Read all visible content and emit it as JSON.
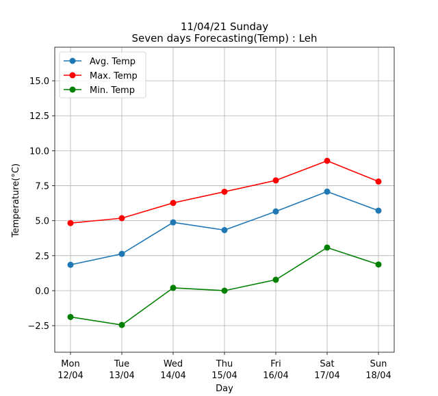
{
  "chart_data": {
    "type": "line",
    "title_line1": "11/04/21 Sunday",
    "title_line2": "Seven days Forecasting(Temp) : Leh",
    "xlabel": "Day",
    "ylabel": "Temperature(°C)",
    "categories": [
      {
        "day": "Mon",
        "date": "12/04"
      },
      {
        "day": "Tue",
        "date": "13/04"
      },
      {
        "day": "Wed",
        "date": "14/04"
      },
      {
        "day": "Thu",
        "date": "15/04"
      },
      {
        "day": "Fri",
        "date": "16/04"
      },
      {
        "day": "Sat",
        "date": "17/04"
      },
      {
        "day": "Sun",
        "date": "18/04"
      }
    ],
    "ylim": [
      -4.4,
      17.4
    ],
    "yticks": [
      -2.5,
      0.0,
      2.5,
      5.0,
      7.5,
      10.0,
      12.5,
      15.0
    ],
    "ytick_labels": [
      "−2.5",
      "0.0",
      "2.5",
      "5.0",
      "7.5",
      "10.0",
      "12.5",
      "15.0"
    ],
    "grid": true,
    "legend_position": "top-left",
    "series": [
      {
        "name": "Avg. Temp",
        "color": "#1f77b4",
        "values": [
          1.85,
          2.63,
          4.88,
          4.33,
          5.66,
          7.08,
          5.72
        ]
      },
      {
        "name": "Max. Temp",
        "color": "#ff0000",
        "values": [
          4.83,
          5.18,
          6.27,
          7.07,
          7.88,
          9.28,
          7.8
        ]
      },
      {
        "name": "Min. Temp",
        "color": "#008000",
        "values": [
          -1.88,
          -2.45,
          0.2,
          0.0,
          0.78,
          3.08,
          1.87
        ]
      }
    ]
  }
}
